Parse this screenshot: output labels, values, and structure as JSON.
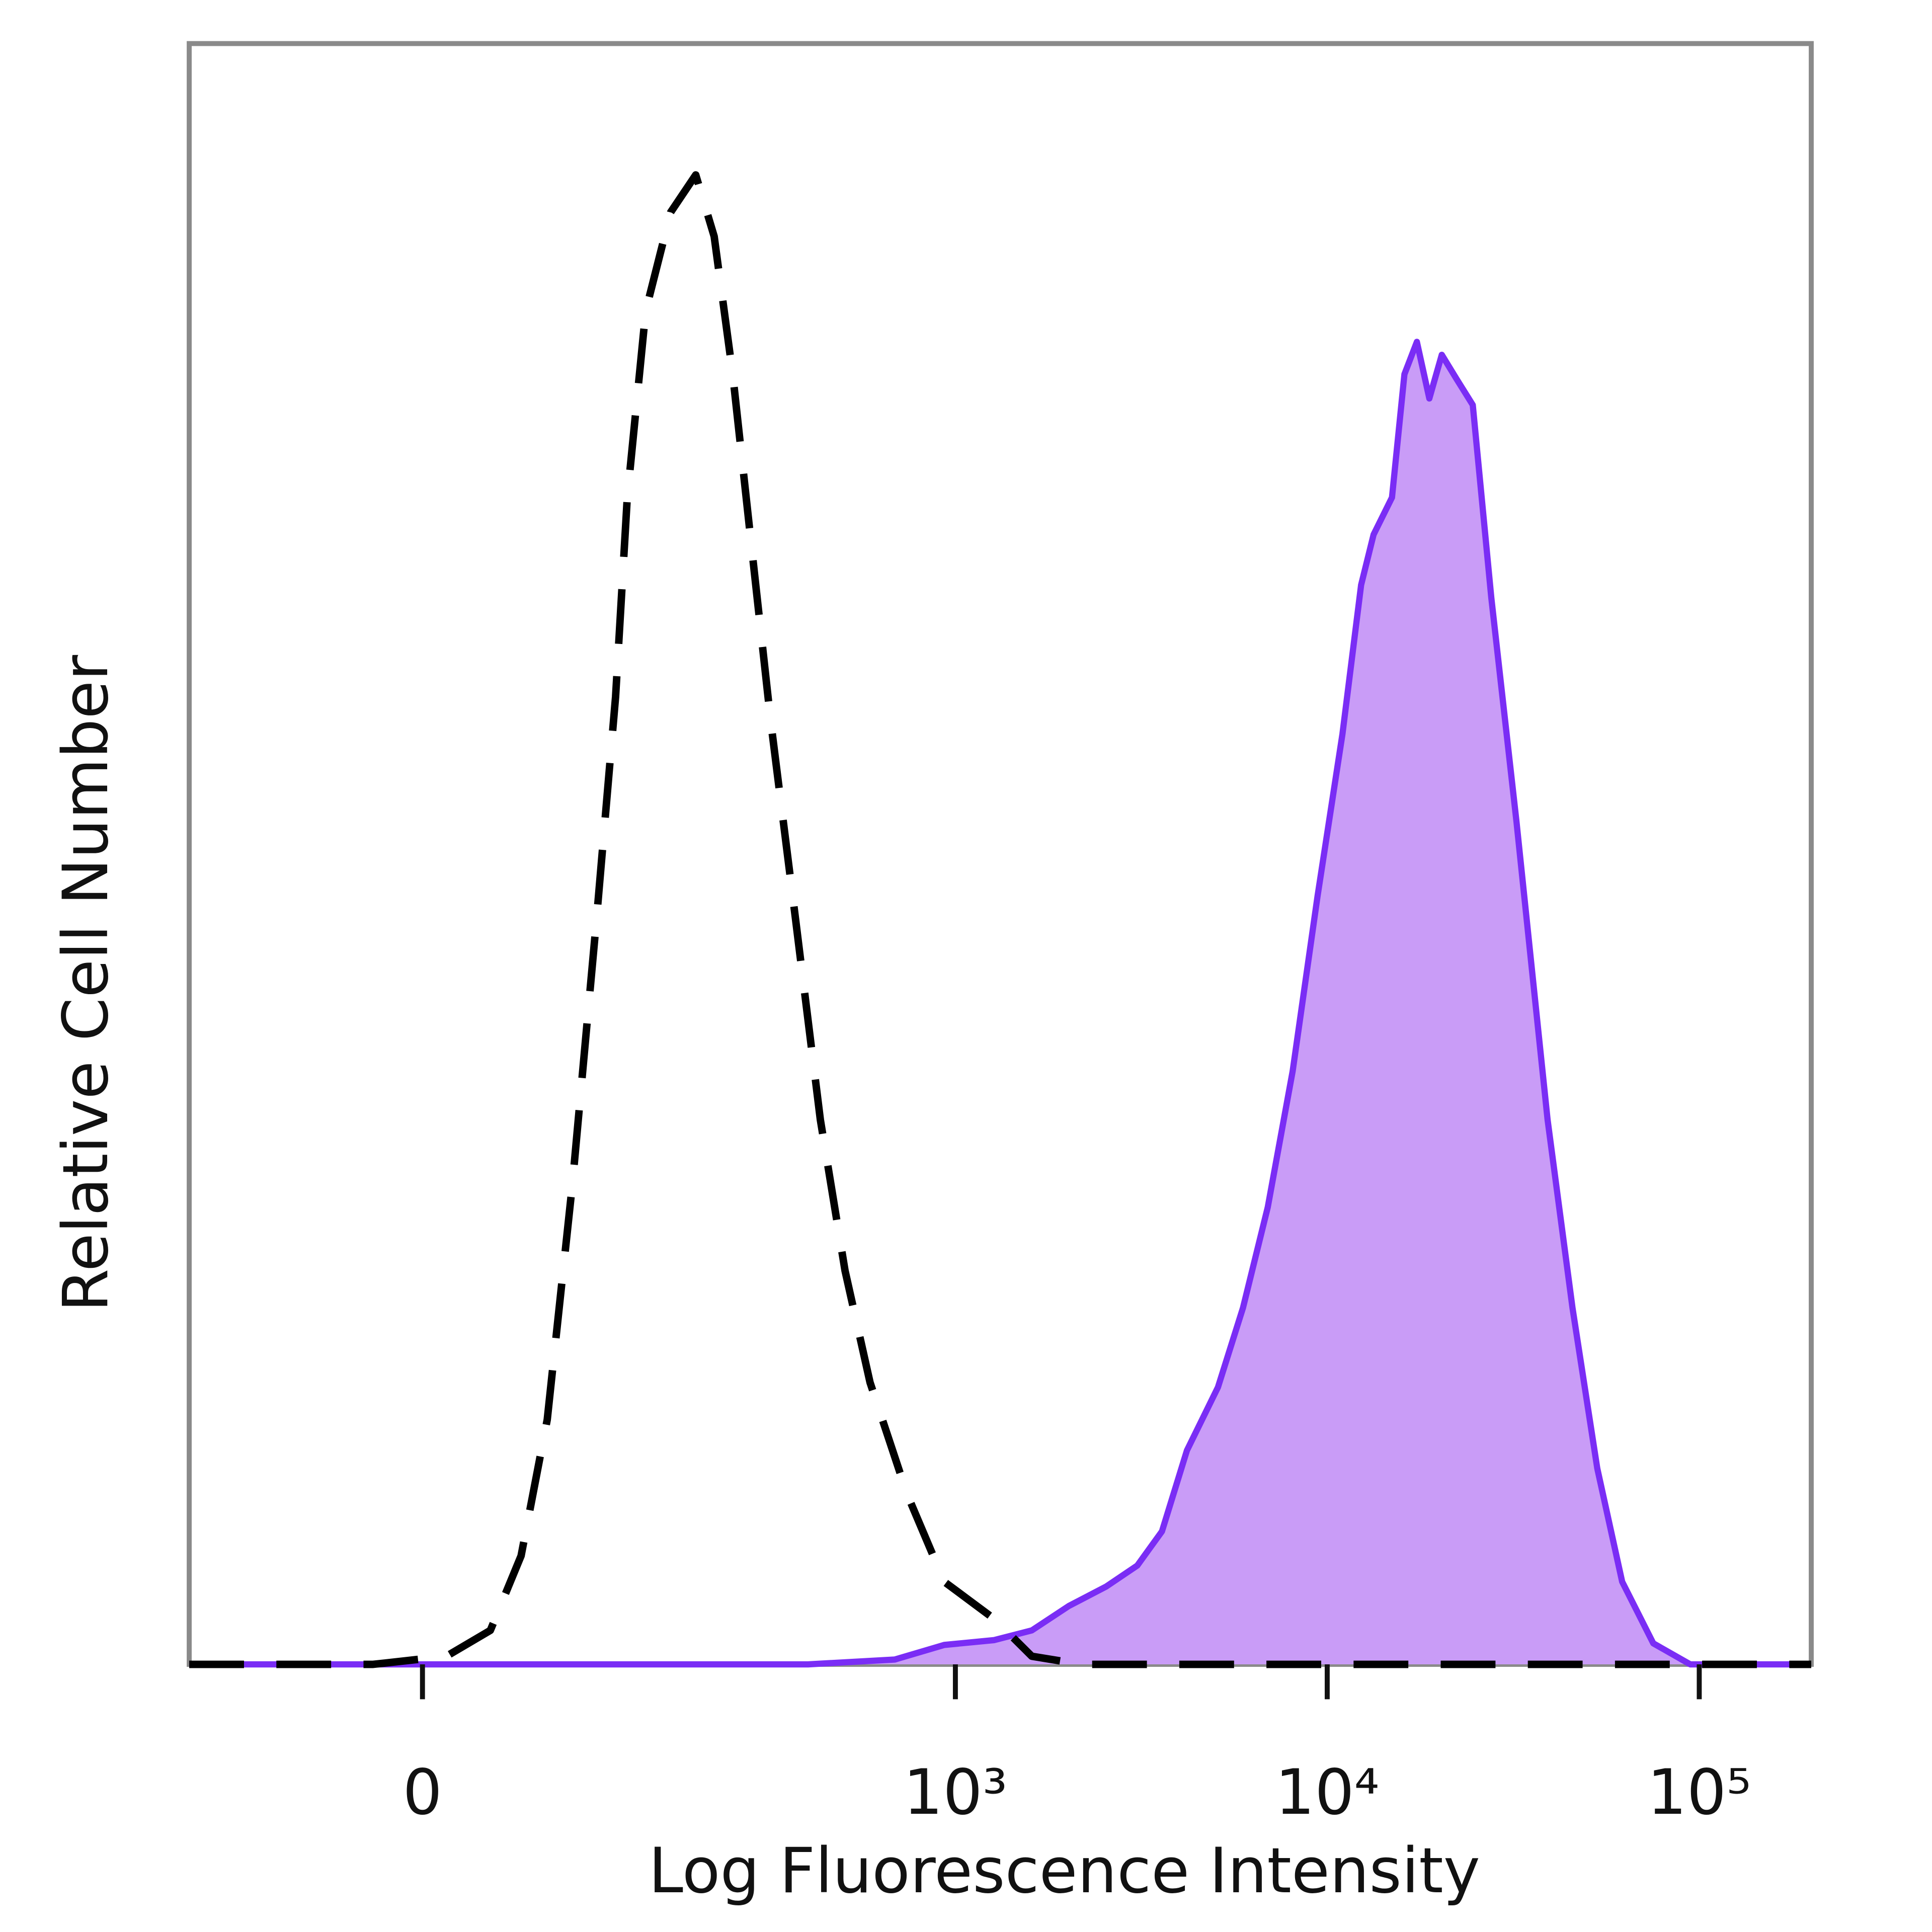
{
  "chart_data": {
    "type": "histogram-overlay",
    "x_label": "Log Fluorescence Intensity",
    "y_label": "Relative Cell Number",
    "xscale": "asinh",
    "xlim": [
      -148,
      200000
    ],
    "ylim": [
      0,
      100
    ],
    "xticks": [
      0,
      {
        "value": 1000,
        "label": "10³"
      },
      {
        "value": 10000,
        "label": "10⁴"
      },
      {
        "value": 100000,
        "label": "10⁵"
      }
    ],
    "series": [
      {
        "color": "#000000",
        "dashed": true,
        "filled": false,
        "x": [
          -148,
          -23,
          11,
          32,
          48,
          63,
          79,
          96,
          111,
          121,
          138,
          164,
          194,
          219,
          247,
          279,
          315,
          369,
          431,
          503,
          588,
          741,
          933,
          1273,
          1606,
          2183,
          200000
        ],
        "values": [
          0,
          0,
          0.5,
          2.1,
          6.7,
          15.1,
          29.7,
          45.9,
          59.7,
          72.0,
          83.5,
          89.6,
          91.9,
          88.1,
          79.6,
          68.9,
          58.2,
          45.9,
          33.6,
          24.3,
          17.4,
          10.5,
          5.1,
          2.8,
          0.5,
          0,
          0
        ]
      },
      {
        "color": "#7a2df5",
        "fill": "#c99cf7",
        "dashed": false,
        "filled": true,
        "x": [
          -148,
          399,
          686,
          933,
          1273,
          1606,
          2020,
          2546,
          3086,
          3596,
          4196,
          5084,
          5935,
          6919,
          8073,
          9420,
          10989,
          12336,
          13327,
          14926,
          16125,
          17420,
          18818,
          20328,
          22267,
          24612,
          27617,
          32257,
          39116,
          45621,
          53213,
          62071,
          75228,
          94572,
          200000
        ],
        "values": [
          0,
          0,
          0.3,
          1.2,
          1.5,
          2.1,
          3.6,
          4.8,
          6.1,
          8.2,
          13.2,
          17.1,
          22.0,
          28.2,
          36.6,
          47.4,
          57.4,
          66.6,
          69.7,
          72.0,
          79.6,
          81.6,
          78.1,
          80.8,
          79.3,
          77.7,
          65.8,
          52.0,
          33.6,
          22.0,
          12.1,
          5.1,
          1.3,
          0,
          0
        ]
      }
    ]
  }
}
